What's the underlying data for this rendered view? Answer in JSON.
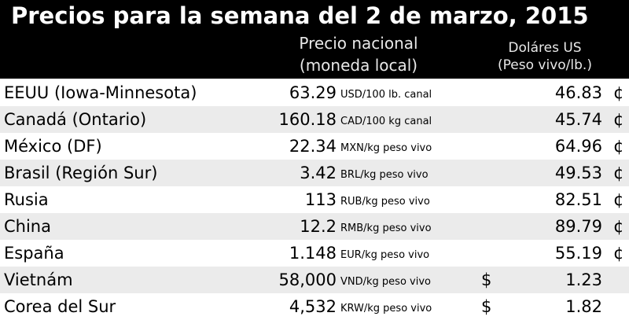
{
  "header": {
    "title": "Precios para la semana del 2 de marzo, 2015",
    "columns": [
      [
        "Precio nacional",
        "(moneda local)"
      ],
      [
        "Doláres US",
        "(Peso vivo/lb.)"
      ]
    ]
  },
  "table": {
    "rows": [
      {
        "country": "EEUU (Iowa-Minnesota)",
        "price": "63.29",
        "unit": "USD/100 lb. canal",
        "usd": "46.83",
        "suffix": "¢"
      },
      {
        "country": "Canadá (Ontario)",
        "price": "160.18",
        "unit": "CAD/100 kg canal",
        "usd": "45.74",
        "suffix": "¢"
      },
      {
        "country": "México (DF)",
        "price": "22.34",
        "unit": "MXN/kg peso vivo",
        "usd": "64.96",
        "suffix": "¢"
      },
      {
        "country": "Brasil (Región Sur)",
        "price": "3.42",
        "unit": "BRL/kg peso vivo",
        "usd": "49.53",
        "suffix": "¢"
      },
      {
        "country": "Rusia",
        "price": "113",
        "unit": "RUB/kg peso vivo",
        "usd": "82.51",
        "suffix": "¢"
      },
      {
        "country": "China",
        "price": "12.2",
        "unit": "RMB/kg peso vivo",
        "usd": "89.79",
        "suffix": "¢"
      },
      {
        "country": "España",
        "price": "1.148",
        "unit": "EUR/kg peso vivo",
        "usd": "55.19",
        "suffix": "¢"
      },
      {
        "country": "Vietnám",
        "price": "58,000",
        "unit": "VND/kg peso vivo",
        "prefix": "$",
        "usd": "1.23"
      },
      {
        "country": "Corea del Sur",
        "price": "4,532",
        "unit": "KRW/kg peso vivo",
        "prefix": "$",
        "usd": "1.82"
      }
    ]
  }
}
